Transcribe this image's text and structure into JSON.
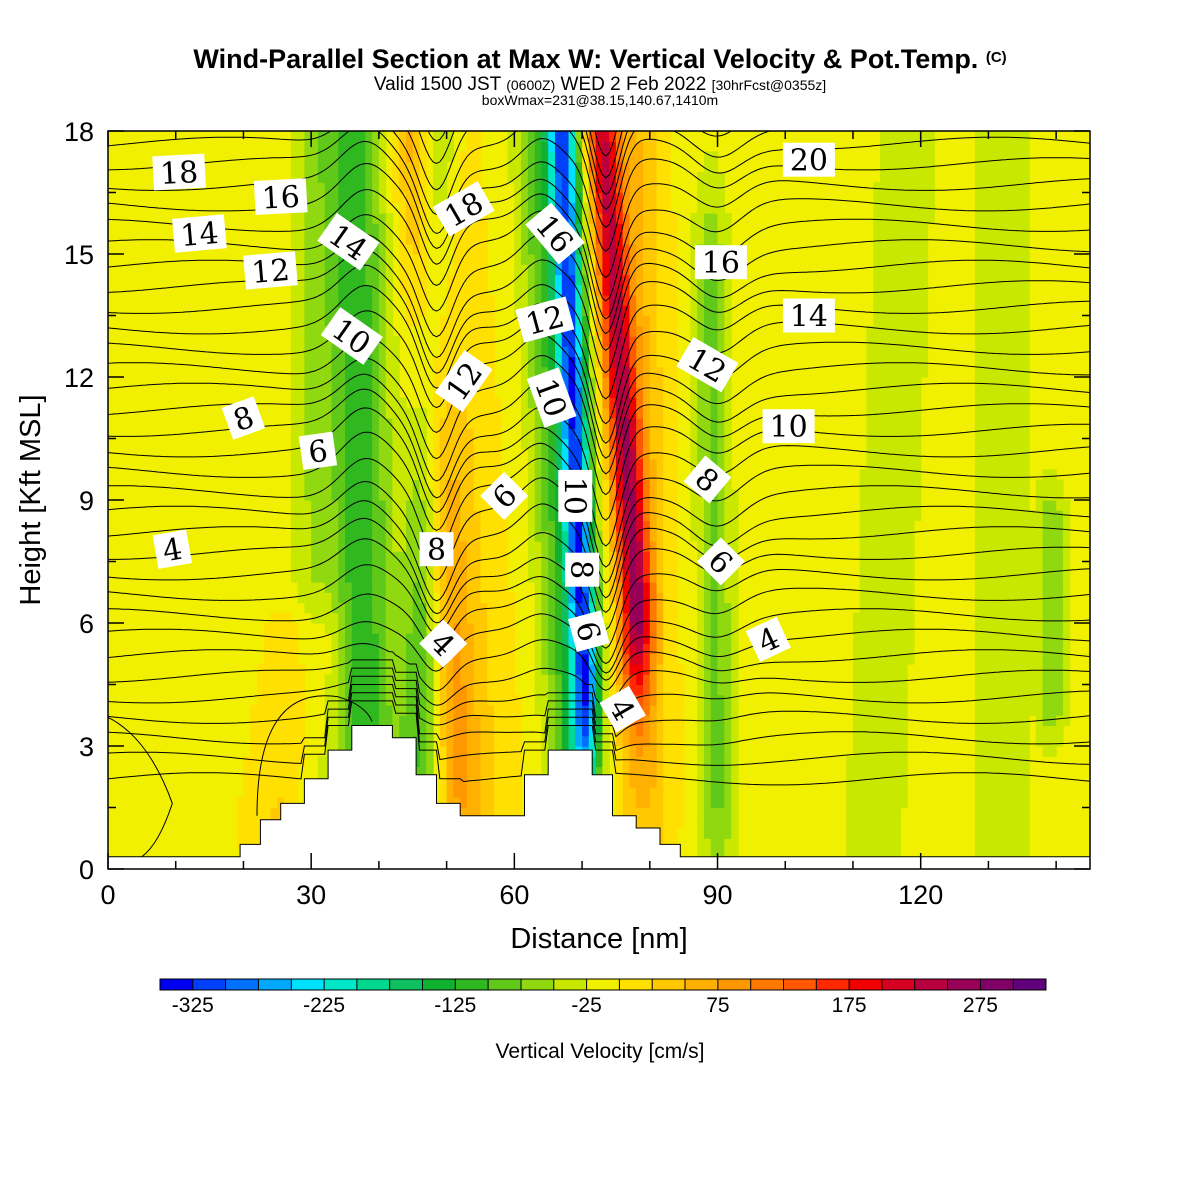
{
  "title": {
    "main": "Wind-Parallel Section at Max W: Vertical Velocity & Pot.Temp.",
    "copyright": "(C)",
    "valid_prefix": "Valid 1500 JST",
    "valid_utc": "(0600Z)",
    "valid_date": "WED 2 Feb 2022",
    "forecast": "[30hrFcst@0355z]",
    "box": "boxWmax=231@38.15,140.67,1410m"
  },
  "chart_data": {
    "type": "heatmap",
    "xlabel": "Distance [nm]",
    "ylabel": "Height [Kft MSL]",
    "xlim": [
      0,
      145
    ],
    "ylim": [
      0,
      18
    ],
    "x_ticks": [
      0,
      30,
      60,
      90,
      120
    ],
    "y_ticks": [
      0,
      3,
      6,
      9,
      12,
      15,
      18
    ],
    "colorbar": {
      "title": "Vertical Velocity [cm/s]",
      "tick_labels": [
        -325,
        -225,
        -125,
        -25,
        75,
        175,
        275
      ],
      "range": [
        -350,
        300
      ],
      "step": 25,
      "colors": [
        "#0000f0",
        "#0040f8",
        "#0070ff",
        "#00a8ff",
        "#00e0ff",
        "#00e8c8",
        "#00d890",
        "#10c060",
        "#10b030",
        "#30b820",
        "#60c818",
        "#90d810",
        "#c8e800",
        "#f0f000",
        "#ffe000",
        "#ffc800",
        "#ffb000",
        "#ff9800",
        "#ff7800",
        "#ff5800",
        "#ff2800",
        "#f00000",
        "#d80020",
        "#b80040",
        "#980058",
        "#800068",
        "#60007c"
      ]
    },
    "terrain_kft": [
      [
        0,
        0.3
      ],
      [
        19.5,
        0.3
      ],
      [
        19.5,
        0.6
      ],
      [
        22.5,
        0.6
      ],
      [
        22.5,
        1.2
      ],
      [
        25.5,
        1.2
      ],
      [
        25.5,
        1.6
      ],
      [
        29,
        1.6
      ],
      [
        29,
        2.2
      ],
      [
        32.5,
        2.2
      ],
      [
        32.5,
        2.9
      ],
      [
        36,
        2.9
      ],
      [
        36,
        3.5
      ],
      [
        42,
        3.5
      ],
      [
        42,
        3.2
      ],
      [
        45.5,
        3.2
      ],
      [
        45.5,
        2.3
      ],
      [
        48.5,
        2.3
      ],
      [
        48.5,
        1.6
      ],
      [
        52,
        1.6
      ],
      [
        52,
        1.3
      ],
      [
        61.5,
        1.3
      ],
      [
        61.5,
        2.3
      ],
      [
        65,
        2.3
      ],
      [
        65,
        2.9
      ],
      [
        71.5,
        2.9
      ],
      [
        71.5,
        2.3
      ],
      [
        74.5,
        2.3
      ],
      [
        74.5,
        1.3
      ],
      [
        78,
        1.3
      ],
      [
        78,
        1.0
      ],
      [
        81.5,
        1.0
      ],
      [
        81.5,
        0.6
      ],
      [
        84.5,
        0.6
      ],
      [
        84.5,
        0.3
      ],
      [
        145,
        0.3
      ]
    ],
    "w_features": [
      {
        "x0": 38.0,
        "z0": 3.0,
        "x1": 36.0,
        "z1": 18.0,
        "w_cm_s": -110,
        "width_nm": 4.5
      },
      {
        "x0": 46.0,
        "z0": 3.0,
        "x1": 48.5,
        "z1": 18.0,
        "w_cm_s": -90,
        "width_nm": 3.0
      },
      {
        "x0": 52.0,
        "z0": 2.5,
        "x1": 45.5,
        "z1": 18.0,
        "w_cm_s": 90,
        "width_nm": 3.5
      },
      {
        "x0": 57.5,
        "z0": 2.5,
        "x1": 51.0,
        "z1": 18.0,
        "w_cm_s": 25,
        "width_nm": 4.0
      },
      {
        "x0": 70.5,
        "z0": 4.5,
        "x1": 67.0,
        "z1": 18.0,
        "w_cm_s": -300,
        "width_nm": 2.2
      },
      {
        "x0": 67.5,
        "z0": 3.0,
        "x1": 63.0,
        "z1": 18.0,
        "w_cm_s": -80,
        "width_nm": 3.0
      },
      {
        "x0": 78.0,
        "z0": 6.5,
        "x1": 73.0,
        "z1": 18.0,
        "w_cm_s": 225,
        "width_nm": 2.3
      },
      {
        "x0": 79.5,
        "z0": 2.5,
        "x1": 78.0,
        "z1": 18.0,
        "w_cm_s": 60,
        "width_nm": 4.0
      },
      {
        "x0": 90.0,
        "z0": 2.0,
        "x1": 89.0,
        "z1": 14.0,
        "w_cm_s": -70,
        "width_nm": 2.5
      },
      {
        "x0": 30.0,
        "z0": 0.3,
        "x1": 30.0,
        "z1": 18.0,
        "w_cm_s": -35,
        "width_nm": 3.0
      },
      {
        "x0": 26.0,
        "z0": 1.0,
        "x1": 30.0,
        "z1": 5.5,
        "w_cm_s": 40,
        "width_nm": 6.0
      },
      {
        "x0": 139.5,
        "z0": 4.0,
        "x1": 139.5,
        "z1": 8.5,
        "w_cm_s": -55,
        "width_nm": 2.0
      },
      {
        "x0": 113.0,
        "z0": 0.3,
        "x1": 118.0,
        "z1": 18.0,
        "w_cm_s": -30,
        "width_nm": 5.0
      },
      {
        "x0": 132.0,
        "z0": 0.3,
        "x1": 132.0,
        "z1": 18.0,
        "w_cm_s": -35,
        "width_nm": 4.0
      }
    ],
    "theta_contour_labels": [
      {
        "text": "18",
        "x": 10.5,
        "z": 17.0,
        "rotation": -3
      },
      {
        "text": "16",
        "x": 25.5,
        "z": 16.4,
        "rotation": -3
      },
      {
        "text": "14",
        "x": 13.5,
        "z": 15.5,
        "rotation": -5
      },
      {
        "text": "12",
        "x": 24.0,
        "z": 14.6,
        "rotation": -5
      },
      {
        "text": "14",
        "x": 35.5,
        "z": 15.3,
        "rotation": 35
      },
      {
        "text": "18",
        "x": 52.5,
        "z": 16.1,
        "rotation": -30
      },
      {
        "text": "16",
        "x": 66.0,
        "z": 15.5,
        "rotation": 50
      },
      {
        "text": "10",
        "x": 36.0,
        "z": 13.0,
        "rotation": 35
      },
      {
        "text": "12",
        "x": 64.5,
        "z": 13.4,
        "rotation": -15
      },
      {
        "text": "12",
        "x": 52.5,
        "z": 11.9,
        "rotation": -55
      },
      {
        "text": "10",
        "x": 65.5,
        "z": 11.5,
        "rotation": 70
      },
      {
        "text": "8",
        "x": 20.0,
        "z": 11.0,
        "rotation": -20
      },
      {
        "text": "6",
        "x": 31.0,
        "z": 10.2,
        "rotation": -8
      },
      {
        "text": "16",
        "x": 90.5,
        "z": 14.8,
        "rotation": 0
      },
      {
        "text": "14",
        "x": 103.5,
        "z": 13.5,
        "rotation": 0
      },
      {
        "text": "12",
        "x": 88.5,
        "z": 12.3,
        "rotation": 30
      },
      {
        "text": "10",
        "x": 100.5,
        "z": 10.8,
        "rotation": 0
      },
      {
        "text": "8",
        "x": 88.5,
        "z": 9.5,
        "rotation": 40
      },
      {
        "text": "6",
        "x": 58.5,
        "z": 9.1,
        "rotation": -45
      },
      {
        "text": "10",
        "x": 69.0,
        "z": 9.1,
        "rotation": 90
      },
      {
        "text": "4",
        "x": 9.5,
        "z": 7.8,
        "rotation": -10
      },
      {
        "text": "8",
        "x": 48.5,
        "z": 7.8,
        "rotation": 0
      },
      {
        "text": "8",
        "x": 70.0,
        "z": 7.3,
        "rotation": 90
      },
      {
        "text": "6",
        "x": 90.5,
        "z": 7.5,
        "rotation": 45
      },
      {
        "text": "6",
        "x": 71.0,
        "z": 5.8,
        "rotation": 75
      },
      {
        "text": "4",
        "x": 49.5,
        "z": 5.5,
        "rotation": 45
      },
      {
        "text": "4",
        "x": 97.5,
        "z": 5.6,
        "rotation": -25
      },
      {
        "text": "4",
        "x": 76.0,
        "z": 3.9,
        "rotation": 60
      },
      {
        "text": "20",
        "x": 103.5,
        "z": 17.3,
        "rotation": 0
      }
    ]
  }
}
